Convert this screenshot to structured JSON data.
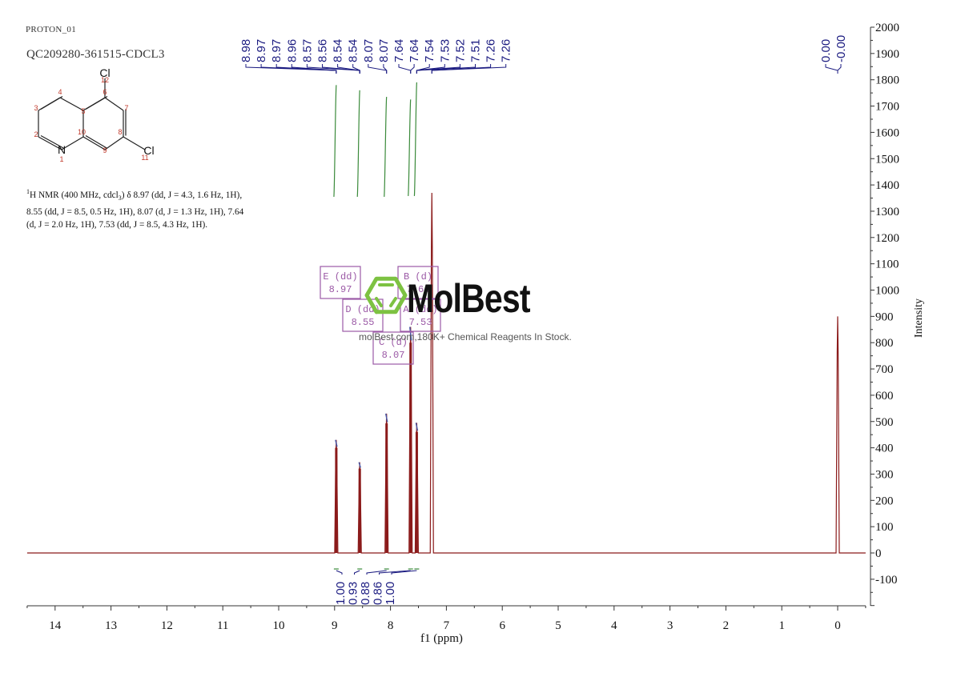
{
  "header": {
    "experiment": "PROTON_01",
    "sample": "QC209280-361515-CDCL3"
  },
  "molecule": {
    "atoms": [
      {
        "label": "N",
        "num": "1"
      },
      {
        "num": "2"
      },
      {
        "num": "3"
      },
      {
        "num": "4"
      },
      {
        "num": "5"
      },
      {
        "num": "6"
      },
      {
        "num": "7"
      },
      {
        "num": "8"
      },
      {
        "num": "9"
      },
      {
        "num": "10"
      },
      {
        "label": "Cl",
        "num": "11"
      },
      {
        "label": "Cl",
        "num": "12"
      }
    ]
  },
  "nmr_description": {
    "line1": "H NMR (400 MHz, cdcl",
    "sup": "1",
    "sub": "3",
    "line1_rest": ") δ 8.97 (dd, J = 4.3, 1.6 Hz, 1H),",
    "line2": "8.55 (dd, J = 8.5, 0.5 Hz, 1H), 8.07 (d, J = 1.3 Hz, 1H), 7.64",
    "line3": "(d, J = 2.0 Hz, 1H), 7.53 (dd, J = 8.5, 4.3 Hz, 1H)."
  },
  "watermark": {
    "logo": "MolBest",
    "tagline": "molBest.com,180K+ Chemical Reagents In Stock."
  },
  "colors": {
    "spectrum": "#8b1a1a",
    "peak_labels": "#1a1a80",
    "integral": "#3a8a3a",
    "multiplet_box": "#9b59a6",
    "logo_green": "#7dc242",
    "axis": "#333333"
  },
  "chart_data": {
    "type": "line",
    "title": "QC209280-361515-CDCL3",
    "xlabel": "f1 (ppm)",
    "ylabel": "Intensity",
    "xlim": [
      14.5,
      -0.5
    ],
    "ylim": [
      -200,
      2000
    ],
    "x_ticks": [
      14,
      13,
      12,
      11,
      10,
      9,
      8,
      7,
      6,
      5,
      4,
      3,
      2,
      1,
      0
    ],
    "y_ticks": [
      2000,
      1900,
      1800,
      1700,
      1600,
      1500,
      1400,
      1300,
      1200,
      1100,
      1000,
      900,
      800,
      700,
      600,
      500,
      400,
      300,
      200,
      100,
      0,
      -100
    ],
    "peaks": [
      {
        "ppm": 8.97,
        "intensity": 430
      },
      {
        "ppm": 8.55,
        "intensity": 345
      },
      {
        "ppm": 8.07,
        "intensity": 530
      },
      {
        "ppm": 7.64,
        "intensity": 860
      },
      {
        "ppm": 7.53,
        "intensity": 495
      },
      {
        "ppm": 7.26,
        "intensity": 1370
      },
      {
        "ppm": 0.0,
        "intensity": 900
      }
    ],
    "peak_labels": [
      "8.98",
      "8.97",
      "8.97",
      "8.96",
      "8.57",
      "8.56",
      "8.54",
      "8.54",
      "8.07",
      "8.07",
      "7.64",
      "7.64",
      "7.54",
      "7.53",
      "7.52",
      "7.51",
      "7.26",
      "7.26"
    ],
    "tms_labels": [
      "0.00",
      "-0.00"
    ],
    "multiplets": [
      {
        "id": "E",
        "type": "(dd)",
        "shift": "8.97"
      },
      {
        "id": "D",
        "type": "(dd)",
        "shift": "8.55"
      },
      {
        "id": "C",
        "type": "(d)",
        "shift": "8.07"
      },
      {
        "id": "B",
        "type": "(d)",
        "shift": "7.64"
      },
      {
        "id": "A",
        "type": "(dd)",
        "shift": "7.53"
      }
    ],
    "integrals": [
      {
        "ppm": 8.97,
        "value": "1.00"
      },
      {
        "ppm": 8.55,
        "value": "0.93"
      },
      {
        "ppm": 8.07,
        "value": "0.88"
      },
      {
        "ppm": 7.64,
        "value": "0.86"
      },
      {
        "ppm": 7.53,
        "value": "1.00"
      }
    ]
  }
}
